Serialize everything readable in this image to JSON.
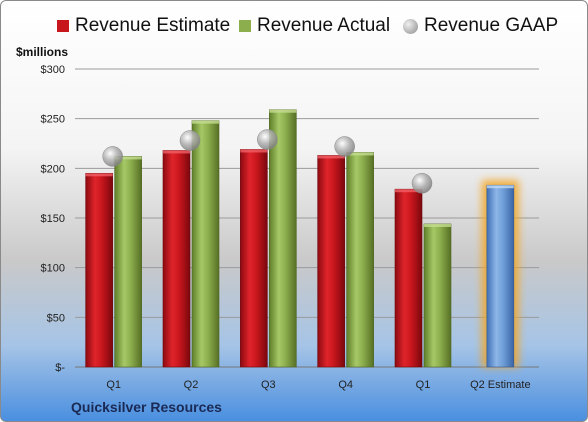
{
  "chart_data": {
    "type": "bar",
    "ylabel": "$millions",
    "ylim": [
      0,
      300
    ],
    "ytick_labels": [
      "$-",
      "$50",
      "$100",
      "$150",
      "$200",
      "$250",
      "$300"
    ],
    "ytick_values": [
      0,
      50,
      100,
      150,
      200,
      250,
      300
    ],
    "categories": [
      "Q1",
      "Q2",
      "Q3",
      "Q4",
      "Q1",
      "Q2 Estimate"
    ],
    "series": [
      {
        "name": "Revenue Estimate",
        "type": "bar",
        "color": "#c8161d",
        "values": [
          195,
          218,
          219,
          213,
          179,
          null
        ]
      },
      {
        "name": "Revenue Actual",
        "type": "bar",
        "color": "#8cae4d",
        "values": [
          212,
          248,
          259,
          216,
          144,
          null
        ]
      },
      {
        "name": "Revenue GAAP",
        "type": "scatter",
        "color": "#a0a0a0",
        "values": [
          212,
          228,
          229,
          222,
          185,
          null
        ]
      }
    ],
    "estimate_bar": {
      "category": "Q2 Estimate",
      "value": 183,
      "color": "#6f9fd8",
      "glow": "#f5a623"
    },
    "grid": true,
    "legend_position": "top"
  },
  "caption": "Quicksilver Resources"
}
